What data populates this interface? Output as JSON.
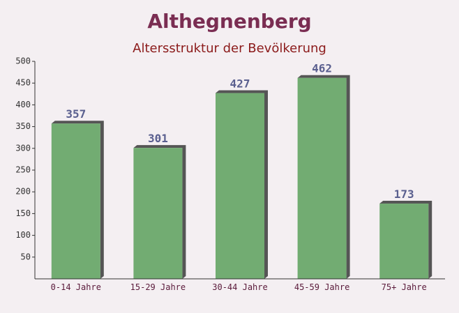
{
  "chart_data": {
    "type": "bar",
    "title": "Althegnenberg",
    "subtitle": "Altersstruktur der Bevölkerung",
    "categories": [
      "0-14 Jahre",
      "15-29 Jahre",
      "30-44 Jahre",
      "45-59 Jahre",
      "75+ Jahre"
    ],
    "values": [
      357,
      301,
      427,
      462,
      173
    ],
    "color": "#6aa86a",
    "ylim": [
      0,
      500
    ],
    "yticks": [
      50,
      100,
      150,
      200,
      250,
      300,
      350,
      400,
      450,
      500
    ]
  }
}
